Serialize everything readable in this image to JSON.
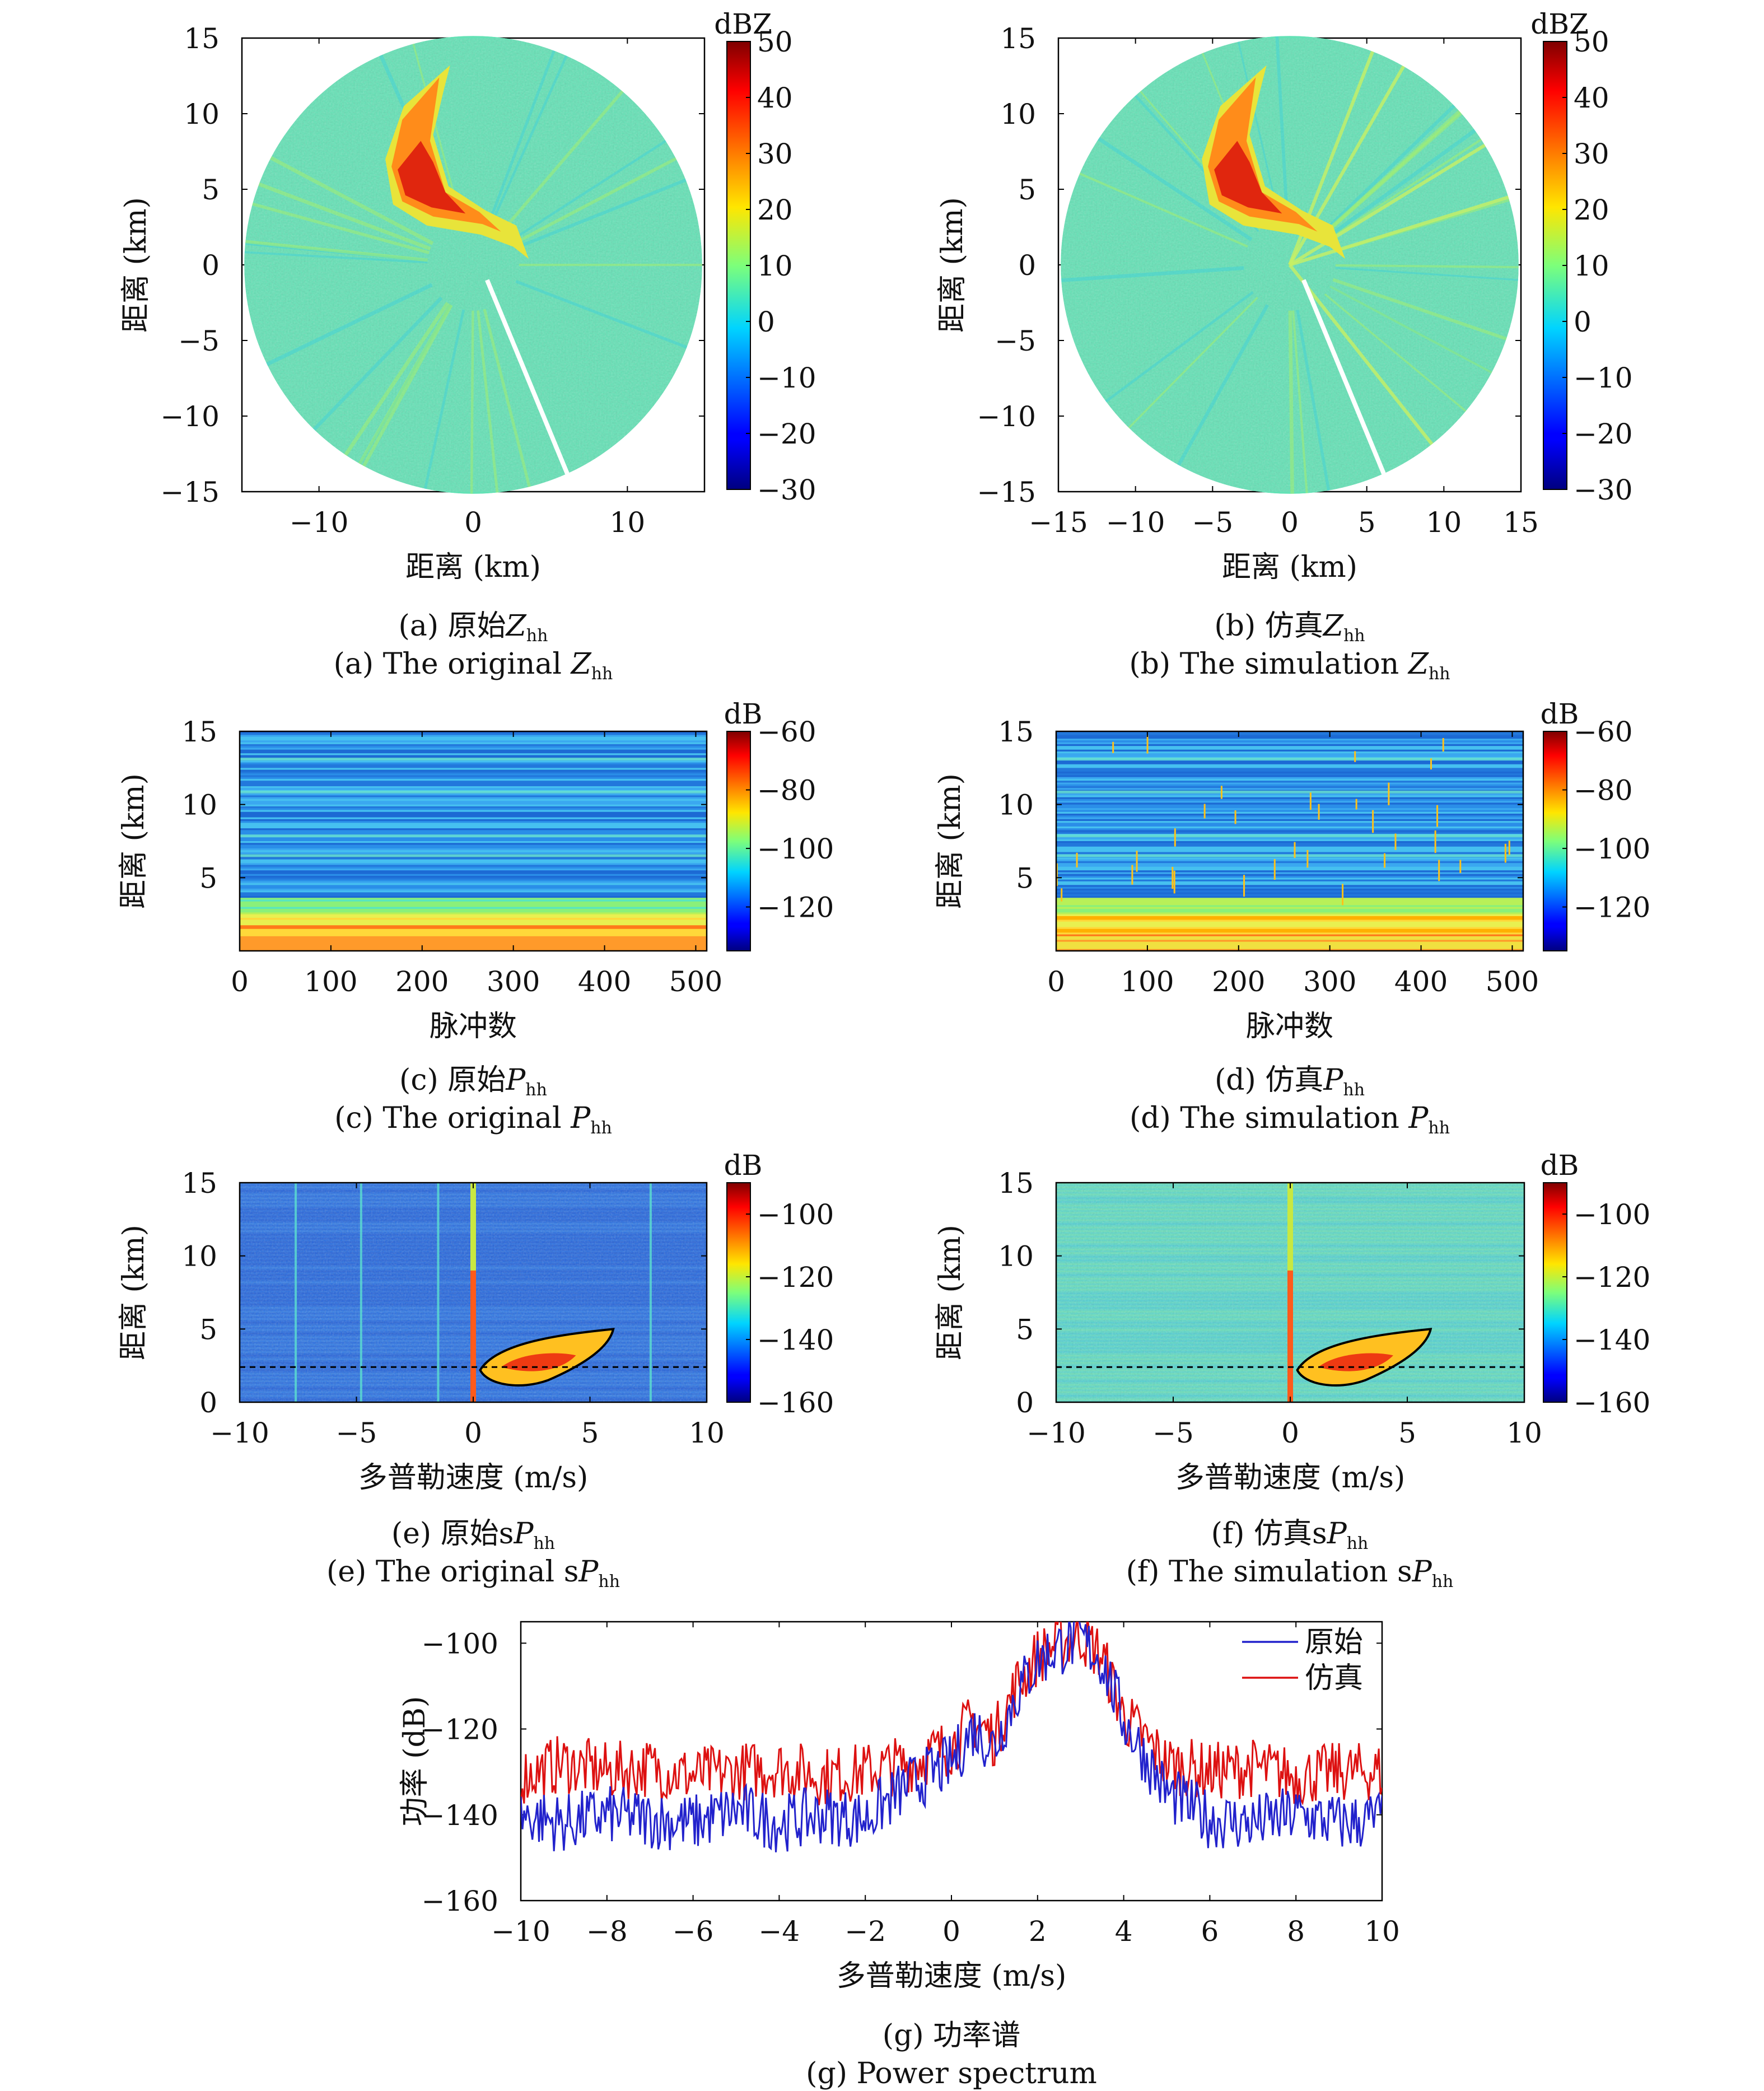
{
  "chart_data": [
    {
      "type": "heatmap",
      "id": "a",
      "kind": "ppi",
      "caption_cn": "(a) 原始",
      "caption_en": "(a) The original ",
      "caption_sym": "Z",
      "caption_sub": "hh",
      "xlabel": "距离 (km)",
      "ylabel": "距离 (km)",
      "xticks": [
        -10,
        0,
        10
      ],
      "yticks": [
        -15,
        -10,
        -5,
        0,
        5,
        10,
        15
      ],
      "xlim": [
        -15,
        15
      ],
      "ylim": [
        -15,
        15
      ],
      "colorbar": {
        "unit": "dBZ",
        "ticks": [
          -30,
          -20,
          -10,
          0,
          10,
          20,
          30,
          40,
          50
        ],
        "range": [
          -30,
          50
        ]
      }
    },
    {
      "type": "heatmap",
      "id": "b",
      "kind": "ppi",
      "caption_cn": "(b) 仿真",
      "caption_en": "(b) The simulation ",
      "caption_sym": "Z",
      "caption_sub": "hh",
      "xlabel": "距离 (km)",
      "ylabel": "距离 (km)",
      "xticks": [
        -15,
        -10,
        -5,
        0,
        5,
        10,
        15
      ],
      "yticks": [
        -15,
        -10,
        -5,
        0,
        5,
        10,
        15
      ],
      "xlim": [
        -15,
        15
      ],
      "ylim": [
        -15,
        15
      ],
      "colorbar": {
        "unit": "dBZ",
        "ticks": [
          -30,
          -20,
          -10,
          0,
          10,
          20,
          30,
          40,
          50
        ],
        "range": [
          -30,
          50
        ]
      }
    },
    {
      "type": "heatmap",
      "id": "c",
      "kind": "pulse",
      "caption_cn": "(c) 原始",
      "caption_en": "(c) The original ",
      "caption_sym": "P",
      "caption_sub": "hh",
      "xlabel": "脉冲数",
      "ylabel": "距离 (km)",
      "xticks": [
        0,
        100,
        200,
        300,
        400,
        500
      ],
      "yticks": [
        5,
        10,
        15
      ],
      "xlim": [
        0,
        512
      ],
      "ylim": [
        0,
        15
      ],
      "colorbar": {
        "unit": "dB",
        "ticks": [
          -120,
          -100,
          -80,
          -60
        ],
        "range": [
          -135,
          -60
        ]
      }
    },
    {
      "type": "heatmap",
      "id": "d",
      "kind": "pulse",
      "caption_cn": "(d) 仿真",
      "caption_en": "(d) The simulation ",
      "caption_sym": "P",
      "caption_sub": "hh",
      "xlabel": "脉冲数",
      "ylabel": "距离 (km)",
      "xticks": [
        0,
        100,
        200,
        300,
        400,
        500
      ],
      "yticks": [
        5,
        10,
        15
      ],
      "xlim": [
        0,
        512
      ],
      "ylim": [
        0,
        15
      ],
      "colorbar": {
        "unit": "dB",
        "ticks": [
          -120,
          -100,
          -80,
          -60
        ],
        "range": [
          -135,
          -60
        ]
      }
    },
    {
      "type": "heatmap",
      "id": "e",
      "kind": "doppler",
      "caption_cn": "(e) 原始s",
      "caption_en": "(e) The original s",
      "caption_sym": "P",
      "caption_sub": "hh",
      "xlabel": "多普勒速度 (m/s)",
      "ylabel": "距离 (km)",
      "xticks": [
        -10,
        -5,
        0,
        5,
        10
      ],
      "yticks": [
        0,
        5,
        10,
        15
      ],
      "xlim": [
        -10,
        10
      ],
      "ylim": [
        0,
        15
      ],
      "colorbar": {
        "unit": "dB",
        "ticks": [
          -160,
          -140,
          -120,
          -100
        ],
        "range": [
          -160,
          -90
        ]
      }
    },
    {
      "type": "heatmap",
      "id": "f",
      "kind": "doppler",
      "caption_cn": "(f) 仿真s",
      "caption_en": "(f) The simulation s",
      "caption_sym": "P",
      "caption_sub": "hh",
      "xlabel": "多普勒速度 (m/s)",
      "ylabel": "距离 (km)",
      "xticks": [
        -10,
        -5,
        0,
        5,
        10
      ],
      "yticks": [
        0,
        5,
        10,
        15
      ],
      "xlim": [
        -10,
        10
      ],
      "ylim": [
        0,
        15
      ],
      "colorbar": {
        "unit": "dB",
        "ticks": [
          -160,
          -140,
          -120,
          -100
        ],
        "range": [
          -160,
          -90
        ]
      }
    },
    {
      "type": "line",
      "id": "g",
      "caption_cn": "(g) 功率谱",
      "caption_en": "(g) Power spectrum",
      "xlabel": "多普勒速度 (m/s)",
      "ylabel": "功率 (dB)",
      "xticks": [
        -10,
        -8,
        -6,
        -4,
        -2,
        0,
        2,
        4,
        6,
        8,
        10
      ],
      "yticks": [
        -160,
        -140,
        -120,
        -100
      ],
      "xlim": [
        -10,
        10
      ],
      "ylim": [
        -160,
        -95
      ],
      "legend_position": "top-right",
      "series": [
        {
          "name": "原始",
          "color": "#2222cc",
          "x": [
            -10,
            -9,
            -8,
            -7,
            -6,
            -5,
            -4,
            -3,
            -2,
            -1,
            0,
            0.5,
            1,
            1.5,
            2,
            2.5,
            3,
            3.5,
            4,
            5,
            6,
            7,
            8,
            9,
            10
          ],
          "y": [
            -140,
            -142,
            -140,
            -141,
            -142,
            -139,
            -142,
            -140,
            -141,
            -133,
            -128,
            -120,
            -124,
            -112,
            -104,
            -101,
            -99,
            -104,
            -118,
            -135,
            -141,
            -142,
            -140,
            -142,
            -141
          ]
        },
        {
          "name": "仿真",
          "color": "#dd1111",
          "x": [
            -10,
            -9,
            -8,
            -7,
            -6,
            -5,
            -4,
            -3,
            -2,
            -1,
            0,
            0.5,
            1,
            1.5,
            2,
            2.5,
            3,
            3.5,
            4,
            5,
            6,
            7,
            8,
            9,
            10
          ],
          "y": [
            -131,
            -128,
            -130,
            -129,
            -131,
            -130,
            -129,
            -131,
            -130,
            -128,
            -124,
            -118,
            -122,
            -110,
            -103,
            -100,
            -98,
            -103,
            -117,
            -128,
            -130,
            -129,
            -131,
            -130,
            -130
          ]
        }
      ]
    }
  ]
}
